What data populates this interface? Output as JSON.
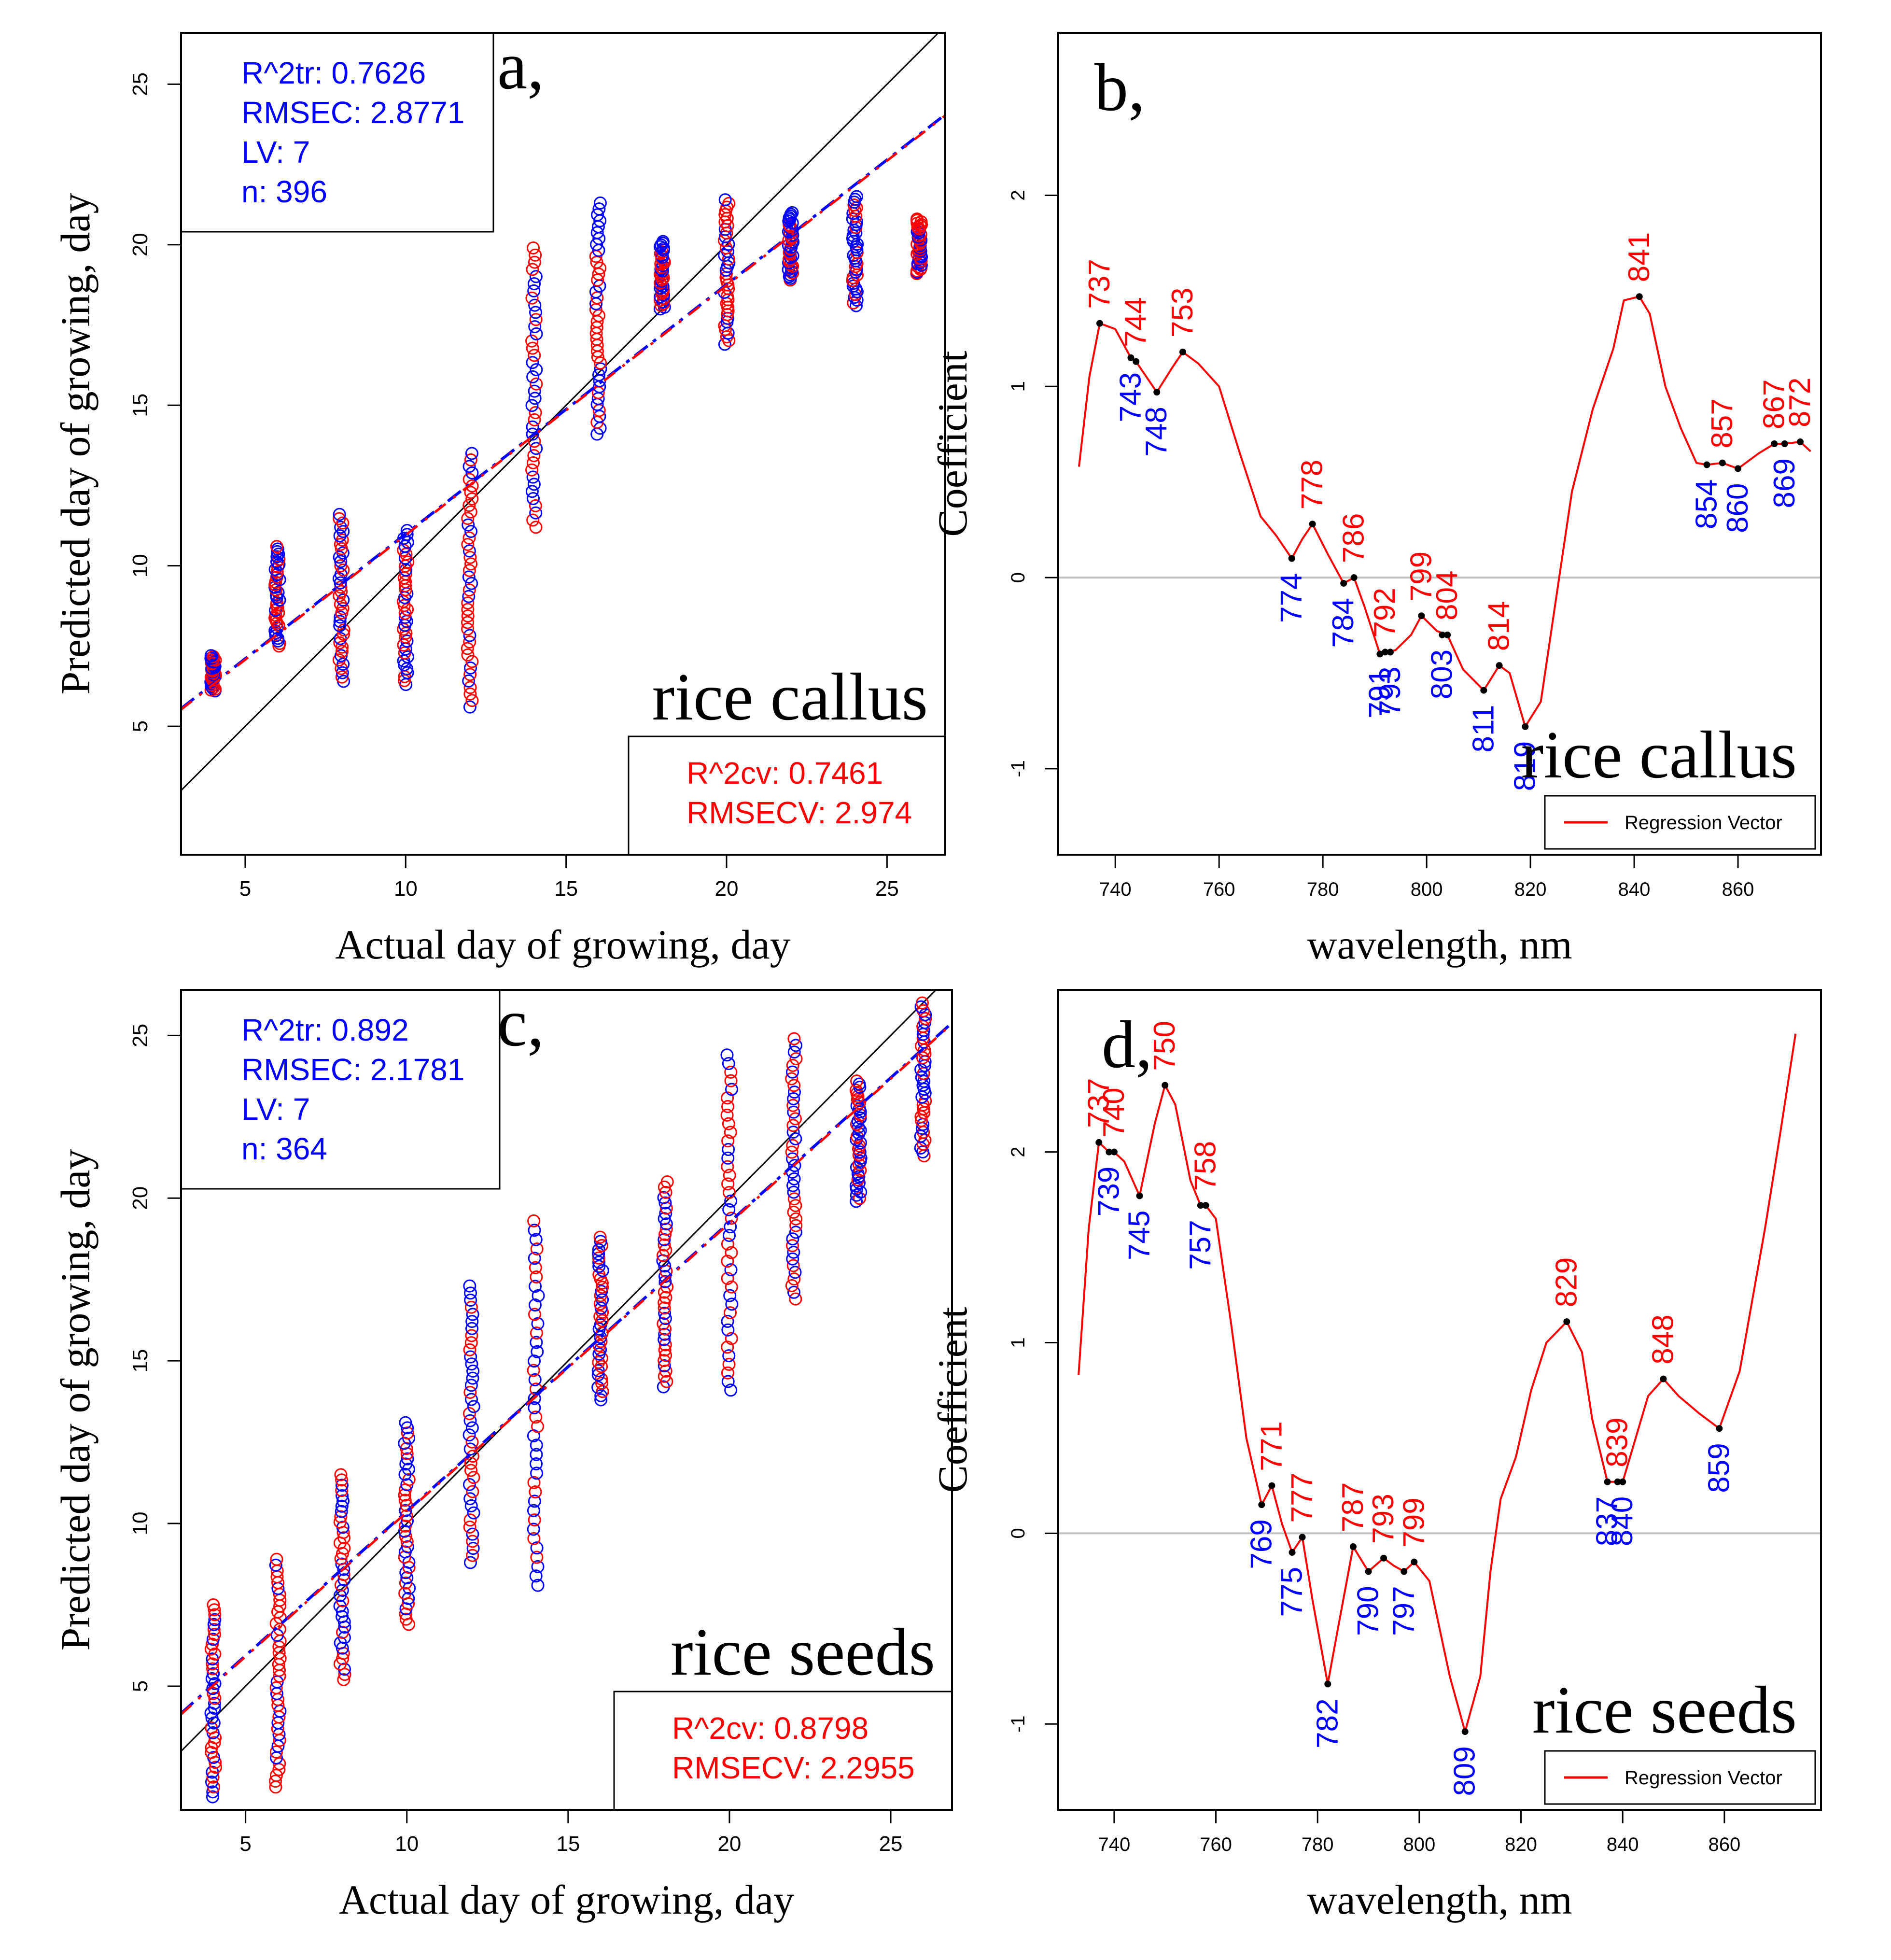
{
  "colors": {
    "red": "#ff0000",
    "blue": "#0000ff",
    "black": "#000000",
    "grey": "#bfbfbf",
    "frame": "#000000"
  },
  "chart_data": [
    {
      "type": "scatter",
      "panel_letter": "a,",
      "sample_label": "rice callus",
      "xlabel": "Actual day of growing, day",
      "ylabel": "Predicted day of growing, day",
      "xlim": [
        3,
        26.8
      ],
      "ylim": [
        1.0,
        26.6
      ],
      "xticks": [
        5,
        10,
        15,
        20,
        25
      ],
      "yticks": [
        5,
        10,
        15,
        20,
        25
      ],
      "train_stats": [
        "R^2tr: 0.7626",
        "RMSEC: 2.8771",
        "LV: 7",
        "n: 396"
      ],
      "cv_stats": [
        "R^2cv: 0.7461",
        "RMSECV: 2.974"
      ],
      "fit_line": {
        "slope": 0.777,
        "intercept": 3.22
      },
      "clusters": [
        {
          "x": 4,
          "min": 6.1,
          "max": 7.2
        },
        {
          "x": 6,
          "min": 7.5,
          "max": 10.6
        },
        {
          "x": 8,
          "min": 6.4,
          "max": 11.6
        },
        {
          "x": 10,
          "min": 6.3,
          "max": 11.1
        },
        {
          "x": 12,
          "min": 5.6,
          "max": 13.5
        },
        {
          "x": 14,
          "min": 11.2,
          "max": 19.9
        },
        {
          "x": 16,
          "min": 14.1,
          "max": 21.3
        },
        {
          "x": 18,
          "min": 18.0,
          "max": 20.1
        },
        {
          "x": 20,
          "min": 16.9,
          "max": 21.4
        },
        {
          "x": 22,
          "min": 18.9,
          "max": 21.0
        },
        {
          "x": 24,
          "min": 18.1,
          "max": 21.5
        },
        {
          "x": 26,
          "min": 19.1,
          "max": 20.8
        }
      ]
    },
    {
      "type": "line",
      "panel_letter": "b,",
      "sample_label": "rice callus",
      "xlabel": "wavelength, nm",
      "ylabel": "Coefficient",
      "legend": "Regression Vector",
      "xlim": [
        729,
        876
      ],
      "ylim": [
        -1.45,
        2.85
      ],
      "xticks": [
        740,
        760,
        780,
        800,
        820,
        840,
        860
      ],
      "yticks": [
        -1,
        0,
        1,
        2
      ],
      "x": [
        733,
        735,
        737,
        740,
        743,
        744,
        746,
        748,
        751,
        753,
        756,
        760,
        764,
        768,
        771,
        774,
        776,
        778,
        781,
        784,
        786,
        788,
        791,
        792,
        794,
        797,
        799,
        802,
        804,
        807,
        811,
        814,
        816,
        819,
        822,
        825,
        828,
        832,
        836,
        838,
        841,
        843,
        846,
        849,
        852,
        854,
        857,
        860,
        864,
        867,
        869,
        872,
        874
      ],
      "y": [
        0.58,
        1.05,
        1.33,
        1.3,
        1.15,
        1.13,
        1.05,
        0.97,
        1.1,
        1.18,
        1.12,
        1.0,
        0.65,
        0.32,
        0.22,
        0.1,
        0.2,
        0.28,
        0.12,
        -0.03,
        0.0,
        -0.15,
        -0.4,
        -0.39,
        -0.38,
        -0.3,
        -0.2,
        -0.28,
        -0.3,
        -0.48,
        -0.59,
        -0.46,
        -0.5,
        -0.78,
        -0.65,
        -0.1,
        0.45,
        0.88,
        1.2,
        1.45,
        1.47,
        1.38,
        1.0,
        0.78,
        0.6,
        0.59,
        0.6,
        0.57,
        0.65,
        0.7,
        0.7,
        0.71,
        0.66
      ],
      "peaks": [
        {
          "label": "737",
          "x": 737,
          "y": 1.33,
          "color": "red",
          "pos": "above"
        },
        {
          "label": "744",
          "x": 744,
          "y": 1.13,
          "color": "red",
          "pos": "above"
        },
        {
          "label": "753",
          "x": 753,
          "y": 1.18,
          "color": "red",
          "pos": "above"
        },
        {
          "label": "778",
          "x": 778,
          "y": 0.28,
          "color": "red",
          "pos": "above"
        },
        {
          "label": "786",
          "x": 786,
          "y": 0.0,
          "color": "red",
          "pos": "above"
        },
        {
          "label": "792",
          "x": 792,
          "y": -0.39,
          "color": "red",
          "pos": "above"
        },
        {
          "label": "799",
          "x": 799,
          "y": -0.2,
          "color": "red",
          "pos": "above"
        },
        {
          "label": "804",
          "x": 804,
          "y": -0.3,
          "color": "red",
          "pos": "above"
        },
        {
          "label": "814",
          "x": 814,
          "y": -0.46,
          "color": "red",
          "pos": "above"
        },
        {
          "label": "841",
          "x": 841,
          "y": 1.47,
          "color": "red",
          "pos": "above"
        },
        {
          "label": "857",
          "x": 857,
          "y": 0.6,
          "color": "red",
          "pos": "above"
        },
        {
          "label": "867",
          "x": 867,
          "y": 0.7,
          "color": "red",
          "pos": "above"
        },
        {
          "label": "872",
          "x": 872,
          "y": 0.71,
          "color": "red",
          "pos": "above"
        }
      ],
      "valleys": [
        {
          "label": "743",
          "x": 743,
          "y": 1.15,
          "color": "blue",
          "pos": "below"
        },
        {
          "label": "748",
          "x": 748,
          "y": 0.97,
          "color": "blue",
          "pos": "below"
        },
        {
          "label": "774",
          "x": 774,
          "y": 0.1,
          "color": "blue",
          "pos": "below"
        },
        {
          "label": "784",
          "x": 784,
          "y": -0.03,
          "color": "blue",
          "pos": "below"
        },
        {
          "label": "791",
          "x": 791,
          "y": -0.4,
          "color": "blue",
          "pos": "below"
        },
        {
          "label": "793",
          "x": 793,
          "y": -0.39,
          "color": "blue",
          "pos": "below"
        },
        {
          "label": "803",
          "x": 803,
          "y": -0.3,
          "color": "blue",
          "pos": "below"
        },
        {
          "label": "811",
          "x": 811,
          "y": -0.59,
          "color": "blue",
          "pos": "below"
        },
        {
          "label": "819",
          "x": 819,
          "y": -0.78,
          "color": "blue",
          "pos": "below"
        },
        {
          "label": "854",
          "x": 854,
          "y": 0.59,
          "color": "blue",
          "pos": "below"
        },
        {
          "label": "860",
          "x": 860,
          "y": 0.57,
          "color": "blue",
          "pos": "below"
        },
        {
          "label": "869",
          "x": 869,
          "y": 0.7,
          "color": "blue",
          "pos": "below"
        }
      ]
    },
    {
      "type": "scatter",
      "panel_letter": "c,",
      "sample_label": "rice seeds",
      "xlabel": "Actual day of growing, day",
      "ylabel": "Predicted day of growing, day",
      "xlim": [
        3,
        26.9
      ],
      "ylim": [
        1.2,
        26.4
      ],
      "xticks": [
        5,
        10,
        15,
        20,
        25
      ],
      "yticks": [
        5,
        10,
        15,
        20,
        25
      ],
      "train_stats": [
        "R^2tr: 0.892",
        "RMSEC: 2.1781",
        "LV: 7",
        "n: 364"
      ],
      "cv_stats": [
        "R^2cv: 0.8798",
        "RMSECV: 2.2955"
      ],
      "fit_line": {
        "slope": 0.888,
        "intercept": 1.5
      },
      "clusters": [
        {
          "x": 4,
          "min": 1.6,
          "max": 7.5
        },
        {
          "x": 6,
          "min": 1.9,
          "max": 8.9
        },
        {
          "x": 8,
          "min": 5.2,
          "max": 11.5
        },
        {
          "x": 10,
          "min": 6.9,
          "max": 13.1
        },
        {
          "x": 12,
          "min": 8.8,
          "max": 17.3
        },
        {
          "x": 14,
          "min": 8.1,
          "max": 19.3
        },
        {
          "x": 16,
          "min": 13.8,
          "max": 18.8
        },
        {
          "x": 18,
          "min": 14.2,
          "max": 20.5
        },
        {
          "x": 20,
          "min": 14.1,
          "max": 24.4
        },
        {
          "x": 22,
          "min": 16.9,
          "max": 24.9
        },
        {
          "x": 24,
          "min": 19.9,
          "max": 23.6
        },
        {
          "x": 26,
          "min": 21.3,
          "max": 26.0
        }
      ]
    },
    {
      "type": "line",
      "panel_letter": "d,",
      "sample_label": "rice seeds",
      "xlabel": "wavelength, nm",
      "ylabel": "Coefficient",
      "legend": "Regression Vector",
      "xlim": [
        729,
        879
      ],
      "ylim": [
        -1.45,
        2.85
      ],
      "xticks": [
        740,
        760,
        780,
        800,
        820,
        840,
        860
      ],
      "yticks": [
        -1,
        0,
        1,
        2
      ],
      "x": [
        733,
        735,
        737,
        739,
        740,
        742,
        745,
        748,
        750,
        752,
        755,
        757,
        758,
        760,
        763,
        766,
        769,
        771,
        773,
        775,
        777,
        779,
        782,
        784,
        787,
        790,
        793,
        795,
        797,
        799,
        802,
        806,
        809,
        812,
        814,
        816,
        819,
        822,
        825,
        829,
        832,
        834,
        837,
        839,
        840,
        842,
        845,
        848,
        851,
        855,
        859,
        863,
        868,
        871,
        874
      ],
      "y": [
        0.83,
        1.6,
        2.05,
        2.0,
        2.0,
        1.95,
        1.77,
        2.15,
        2.35,
        2.25,
        1.85,
        1.72,
        1.72,
        1.65,
        1.1,
        0.5,
        0.15,
        0.25,
        0.05,
        -0.1,
        -0.02,
        -0.35,
        -0.79,
        -0.5,
        -0.07,
        -0.2,
        -0.13,
        -0.17,
        -0.2,
        -0.15,
        -0.25,
        -0.75,
        -1.04,
        -0.75,
        -0.2,
        0.18,
        0.4,
        0.75,
        1.0,
        1.11,
        0.95,
        0.6,
        0.27,
        0.27,
        0.27,
        0.45,
        0.72,
        0.81,
        0.72,
        0.63,
        0.55,
        0.85,
        1.6,
        2.1,
        2.62
      ],
      "peaks": [
        {
          "label": "737",
          "x": 737,
          "y": 2.05,
          "color": "red",
          "pos": "above"
        },
        {
          "label": "740",
          "x": 740,
          "y": 2.0,
          "color": "red",
          "pos": "above"
        },
        {
          "label": "750",
          "x": 750,
          "y": 2.35,
          "color": "red",
          "pos": "above"
        },
        {
          "label": "758",
          "x": 758,
          "y": 1.72,
          "color": "red",
          "pos": "above"
        },
        {
          "label": "771",
          "x": 771,
          "y": 0.25,
          "color": "red",
          "pos": "above"
        },
        {
          "label": "777",
          "x": 777,
          "y": -0.02,
          "color": "red",
          "pos": "above"
        },
        {
          "label": "787",
          "x": 787,
          "y": -0.07,
          "color": "red",
          "pos": "above"
        },
        {
          "label": "793",
          "x": 793,
          "y": -0.13,
          "color": "red",
          "pos": "above"
        },
        {
          "label": "799",
          "x": 799,
          "y": -0.15,
          "color": "red",
          "pos": "above"
        },
        {
          "label": "829",
          "x": 829,
          "y": 1.11,
          "color": "red",
          "pos": "above"
        },
        {
          "label": "839",
          "x": 839,
          "y": 0.27,
          "color": "red",
          "pos": "above"
        },
        {
          "label": "848",
          "x": 848,
          "y": 0.81,
          "color": "red",
          "pos": "above"
        }
      ],
      "valleys": [
        {
          "label": "739",
          "x": 739,
          "y": 2.0,
          "color": "blue",
          "pos": "below"
        },
        {
          "label": "745",
          "x": 745,
          "y": 1.77,
          "color": "blue",
          "pos": "below"
        },
        {
          "label": "757",
          "x": 757,
          "y": 1.72,
          "color": "blue",
          "pos": "below"
        },
        {
          "label": "769",
          "x": 769,
          "y": 0.15,
          "color": "blue",
          "pos": "below"
        },
        {
          "label": "775",
          "x": 775,
          "y": -0.1,
          "color": "blue",
          "pos": "below"
        },
        {
          "label": "782",
          "x": 782,
          "y": -0.79,
          "color": "blue",
          "pos": "below"
        },
        {
          "label": "790",
          "x": 790,
          "y": -0.2,
          "color": "blue",
          "pos": "below"
        },
        {
          "label": "797",
          "x": 797,
          "y": -0.2,
          "color": "blue",
          "pos": "below"
        },
        {
          "label": "809",
          "x": 809,
          "y": -1.04,
          "color": "blue",
          "pos": "below"
        },
        {
          "label": "837",
          "x": 837,
          "y": 0.27,
          "color": "blue",
          "pos": "below"
        },
        {
          "label": "840",
          "x": 840,
          "y": 0.27,
          "color": "blue",
          "pos": "below"
        },
        {
          "label": "859",
          "x": 859,
          "y": 0.55,
          "color": "blue",
          "pos": "below"
        }
      ]
    }
  ]
}
